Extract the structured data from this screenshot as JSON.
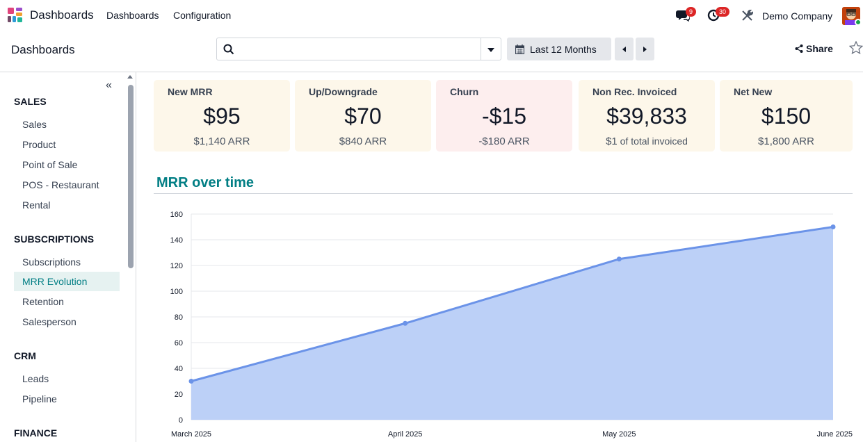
{
  "navbar": {
    "app_name": "Dashboards",
    "menus": [
      "Dashboards",
      "Configuration"
    ],
    "messages_count": "9",
    "activities_count": "30",
    "company": "Demo Company"
  },
  "control_panel": {
    "breadcrumb": "Dashboards",
    "search_placeholder": "",
    "date_filter": "Last 12 Months",
    "share_label": "Share"
  },
  "sidebar": {
    "sections": [
      {
        "title": "SALES",
        "items": [
          "Sales",
          "Product",
          "Point of Sale",
          "POS - Restaurant",
          "Rental"
        ]
      },
      {
        "title": "SUBSCRIPTIONS",
        "items": [
          "Subscriptions",
          "MRR Evolution",
          "Retention",
          "Salesperson"
        ]
      },
      {
        "title": "CRM",
        "items": [
          "Leads",
          "Pipeline"
        ]
      },
      {
        "title": "FINANCE",
        "items": []
      }
    ],
    "active_item": "MRR Evolution"
  },
  "kpis": [
    {
      "title": "New MRR",
      "value": "$95",
      "sub": "$1,140 ARR",
      "sub_suffix": "",
      "color": "#fdf7ea"
    },
    {
      "title": "Up/Downgrade",
      "value": "$70",
      "sub": "$840 ARR",
      "sub_suffix": "",
      "color": "#fdf7ea"
    },
    {
      "title": "Churn",
      "value": "-$15",
      "sub": "-$180 ARR",
      "sub_suffix": "",
      "color": "#fdeeee"
    },
    {
      "title": "Non Rec. Invoiced",
      "value": "$39,833",
      "sub": "$1",
      "sub_suffix": " of total invoiced",
      "color": "#fdf7ea"
    },
    {
      "title": "Net New",
      "value": "$150",
      "sub": "$1,800 ARR",
      "sub_suffix": "",
      "color": "#fdf7ea"
    }
  ],
  "chart_title": "MRR over time",
  "chart_data": {
    "type": "area",
    "x": [
      "March 2025",
      "April 2025",
      "May 2025",
      "June 2025"
    ],
    "series": [
      {
        "values": [
          30,
          75,
          125,
          150
        ],
        "color": "#6b93e8",
        "fill": "#bcd0f7"
      }
    ],
    "ylim": [
      0,
      160
    ],
    "yticks": [
      0,
      20,
      40,
      60,
      80,
      100,
      120,
      140,
      160
    ],
    "grid": true
  }
}
